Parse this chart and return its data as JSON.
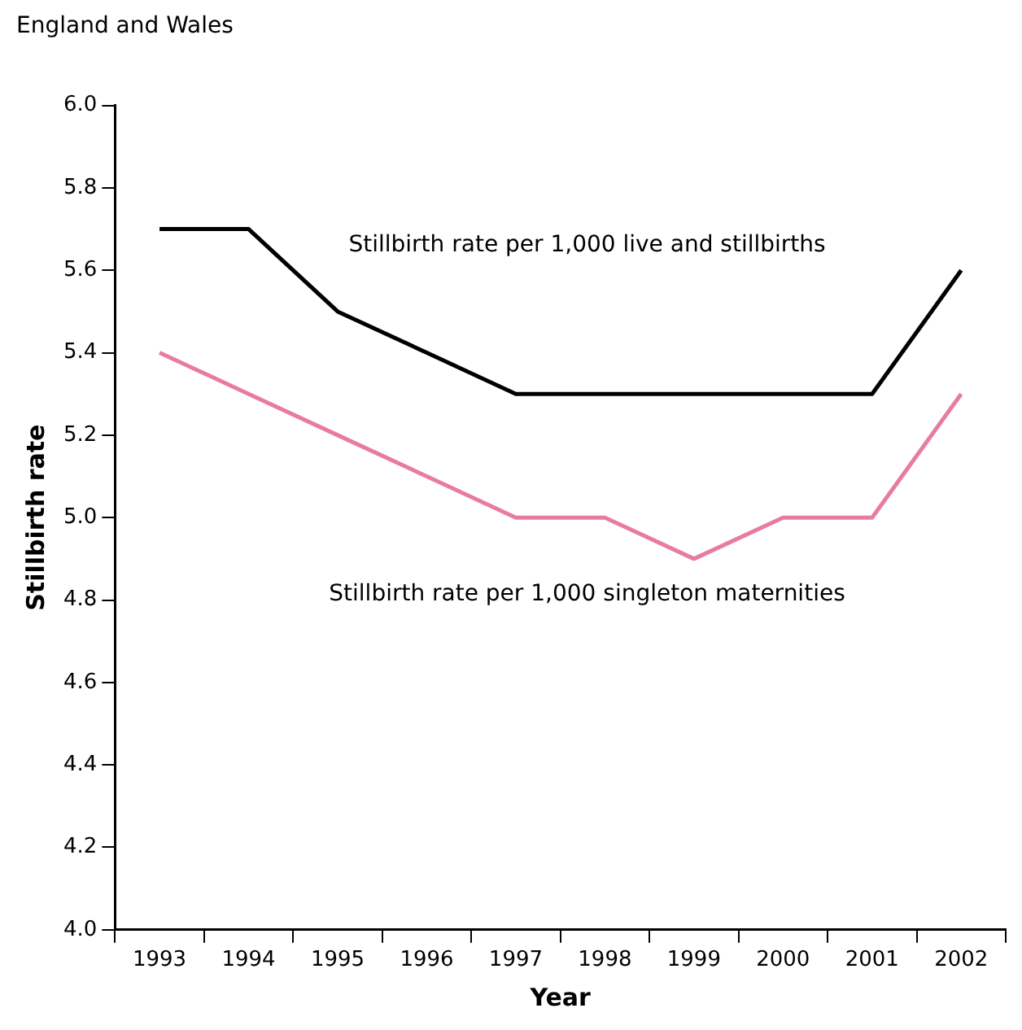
{
  "chart_data": {
    "type": "line",
    "title": "England and Wales",
    "xlabel": "Year",
    "ylabel": "Stillbirth rate",
    "categories": [
      "1993",
      "1994",
      "1995",
      "1996",
      "1997",
      "1998",
      "1999",
      "2000",
      "2001",
      "2002"
    ],
    "series": [
      {
        "name": "Stillbirth rate per 1,000 live and stillbirths",
        "color": "#000000",
        "values": [
          5.7,
          5.7,
          5.5,
          5.4,
          5.3,
          5.3,
          5.3,
          5.3,
          5.3,
          5.6
        ]
      },
      {
        "name": "Stillbirth rate per 1,000 singleton maternities",
        "color": "#e87c9f",
        "values": [
          5.4,
          5.3,
          5.2,
          5.1,
          5.0,
          5.0,
          4.9,
          5.0,
          5.0,
          5.3
        ]
      }
    ],
    "ylim": [
      4.0,
      6.0
    ],
    "yticks": [
      {
        "value": 4,
        "label": "4.0"
      },
      4.2,
      4.4,
      4.6,
      4.8,
      {
        "value": 5,
        "label": "5.0"
      },
      5.2,
      5.4,
      5.6,
      5.8,
      {
        "value": 6,
        "label": "6.0"
      }
    ],
    "grid": false,
    "legend": false,
    "marker": "none",
    "line_style": "solid"
  }
}
